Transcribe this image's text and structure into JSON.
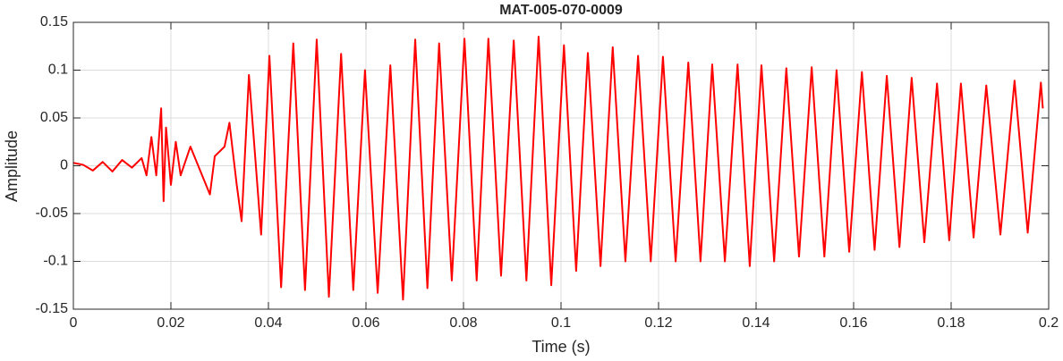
{
  "chart_data": {
    "type": "line",
    "title": "MAT-005-070-0009",
    "xlabel": "Time (s)",
    "ylabel": "Amplitude",
    "color": "#ff0000",
    "grid": true,
    "xlim": [
      0,
      0.2
    ],
    "xticks": [
      0,
      0.02,
      0.04,
      0.06,
      0.08,
      0.1,
      0.12,
      0.14,
      0.16,
      0.18,
      0.2
    ],
    "ylim": [
      -0.15,
      0.15
    ],
    "yticks": [
      -0.15,
      -0.1,
      -0.05,
      0,
      0.05,
      0.1,
      0.15
    ],
    "x": [
      0,
      0.002,
      0.004,
      0.006,
      0.008,
      0.01,
      0.012,
      0.014,
      0.015,
      0.016,
      0.017,
      0.018,
      0.0185,
      0.019,
      0.02,
      0.021,
      0.022,
      0.024,
      0.026,
      0.028,
      0.029,
      0.031,
      0.032,
      0.0335,
      0.0345,
      0.036,
      0.0385,
      0.0402,
      0.0426,
      0.0451,
      0.0475,
      0.0499,
      0.0524,
      0.0549,
      0.0574,
      0.0598,
      0.0624,
      0.065,
      0.0676,
      0.0701,
      0.0726,
      0.075,
      0.0776,
      0.0802,
      0.0827,
      0.0851,
      0.0877,
      0.0903,
      0.0929,
      0.0954,
      0.098,
      0.1006,
      0.1031,
      0.1055,
      0.1081,
      0.1106,
      0.1132,
      0.1158,
      0.1184,
      0.1209,
      0.1235,
      0.1261,
      0.1286,
      0.131,
      0.1336,
      0.1362,
      0.1387,
      0.1411,
      0.1437,
      0.1462,
      0.1488,
      0.1514,
      0.154,
      0.1565,
      0.1591,
      0.1617,
      0.1643,
      0.1668,
      0.1694,
      0.1719,
      0.1745,
      0.1771,
      0.1796,
      0.182,
      0.1846,
      0.1872,
      0.1901,
      0.193,
      0.1957,
      0.1984,
      0.1988
    ],
    "values": [
      0.003,
      0.001,
      -0.005,
      0.004,
      -0.006,
      0.006,
      -0.002,
      0.008,
      -0.01,
      0.03,
      -0.01,
      0.06,
      -0.037,
      0.04,
      -0.02,
      0.025,
      -0.01,
      0.02,
      -0.005,
      -0.03,
      0.01,
      0.02,
      0.045,
      -0.02,
      -0.058,
      0.095,
      -0.072,
      0.115,
      -0.127,
      0.128,
      -0.13,
      0.132,
      -0.137,
      0.117,
      -0.13,
      0.1,
      -0.133,
      0.105,
      -0.14,
      0.132,
      -0.128,
      0.128,
      -0.12,
      0.133,
      -0.12,
      0.133,
      -0.115,
      0.131,
      -0.12,
      0.135,
      -0.125,
      0.126,
      -0.11,
      0.118,
      -0.105,
      0.124,
      -0.1,
      0.115,
      -0.1,
      0.114,
      -0.1,
      0.108,
      -0.1,
      0.106,
      -0.1,
      0.106,
      -0.105,
      0.105,
      -0.1,
      0.102,
      -0.095,
      0.103,
      -0.095,
      0.1,
      -0.09,
      0.098,
      -0.088,
      0.094,
      -0.085,
      0.092,
      -0.08,
      0.086,
      -0.078,
      0.086,
      -0.075,
      0.084,
      -0.072,
      0.089,
      -0.07,
      0.087,
      0.06
    ]
  }
}
